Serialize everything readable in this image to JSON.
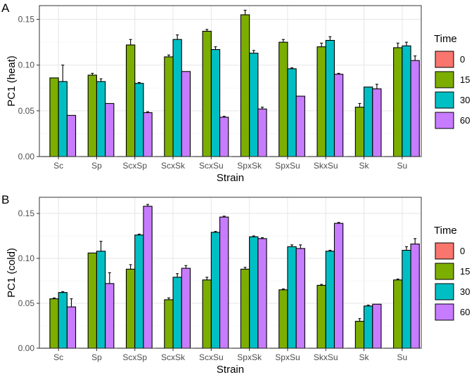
{
  "figure": {
    "panels": [
      "A",
      "B"
    ]
  },
  "legend": {
    "title": "Time",
    "entries": [
      "0",
      "15",
      "30",
      "60"
    ],
    "colors": [
      "#F8766D",
      "#7CAE00",
      "#00BFC4",
      "#C77CFF"
    ]
  },
  "chart_data": [
    {
      "panel": "A",
      "type": "bar",
      "xlabel": "Strain",
      "ylabel": "PC1 (heat)",
      "ylim": [
        0,
        0.165
      ],
      "yticks": [
        0.0,
        0.05,
        0.1,
        0.15
      ],
      "ytick_labels": [
        "0.00",
        "0.05",
        "0.10",
        "0.15"
      ],
      "grid": true,
      "legend_position": "right",
      "categories": [
        "Sc",
        "Sp",
        "ScxSp",
        "ScxSk",
        "ScxSu",
        "SpxSk",
        "SpxSu",
        "SkxSu",
        "Sk",
        "Su"
      ],
      "series": [
        {
          "name": "0",
          "values": [
            0,
            0,
            0,
            0,
            0,
            0,
            0,
            0,
            0,
            0
          ],
          "errors": [
            0,
            0,
            0,
            0,
            0,
            0,
            0,
            0,
            0,
            0
          ]
        },
        {
          "name": "15",
          "values": [
            0.086,
            0.089,
            0.122,
            0.109,
            0.137,
            0.155,
            0.125,
            0.12,
            0.054,
            0.119
          ],
          "errors": [
            0.0,
            0.002,
            0.006,
            0.002,
            0.002,
            0.005,
            0.003,
            0.004,
            0.004,
            0.005
          ]
        },
        {
          "name": "30",
          "values": [
            0.082,
            0.082,
            0.08,
            0.128,
            0.117,
            0.113,
            0.096,
            0.127,
            0.076,
            0.121
          ],
          "errors": [
            0.018,
            0.003,
            0.001,
            0.005,
            0.003,
            0.003,
            0.001,
            0.004,
            0.0,
            0.004
          ]
        },
        {
          "name": "60",
          "values": [
            0.045,
            0.058,
            0.048,
            0.093,
            0.043,
            0.052,
            0.066,
            0.09,
            0.074,
            0.105
          ],
          "errors": [
            0.0,
            0.0,
            0.001,
            0.0,
            0.001,
            0.002,
            0.0,
            0.001,
            0.005,
            0.005
          ]
        }
      ]
    },
    {
      "panel": "B",
      "type": "bar",
      "xlabel": "Strain",
      "ylabel": "PC1 (cold)",
      "ylim": [
        0,
        0.168
      ],
      "yticks": [
        0.0,
        0.05,
        0.1,
        0.15
      ],
      "ytick_labels": [
        "0.00",
        "0.05",
        "0.10",
        "0.15"
      ],
      "grid": true,
      "legend_position": "right",
      "categories": [
        "Sc",
        "Sp",
        "ScxSp",
        "ScxSk",
        "ScxSu",
        "SpxSk",
        "SpxSu",
        "SkxSu",
        "Sk",
        "Su"
      ],
      "series": [
        {
          "name": "0",
          "values": [
            0,
            0,
            0,
            0,
            0,
            0,
            0,
            0,
            0,
            0
          ],
          "errors": [
            0,
            0,
            0,
            0,
            0,
            0,
            0,
            0,
            0,
            0
          ]
        },
        {
          "name": "15",
          "values": [
            0.055,
            0.106,
            0.088,
            0.054,
            0.076,
            0.088,
            0.065,
            0.07,
            0.03,
            0.076
          ],
          "errors": [
            0.001,
            0.0,
            0.005,
            0.002,
            0.003,
            0.002,
            0.001,
            0.001,
            0.003,
            0.001
          ]
        },
        {
          "name": "30",
          "values": [
            0.062,
            0.108,
            0.126,
            0.079,
            0.129,
            0.124,
            0.113,
            0.108,
            0.047,
            0.109
          ],
          "errors": [
            0.001,
            0.011,
            0.001,
            0.004,
            0.001,
            0.001,
            0.002,
            0.001,
            0.001,
            0.004
          ]
        },
        {
          "name": "60",
          "values": [
            0.046,
            0.072,
            0.158,
            0.089,
            0.146,
            0.122,
            0.111,
            0.139,
            0.049,
            0.116
          ],
          "errors": [
            0.009,
            0.012,
            0.002,
            0.003,
            0.001,
            0.001,
            0.004,
            0.001,
            0.0,
            0.006
          ]
        }
      ]
    }
  ]
}
